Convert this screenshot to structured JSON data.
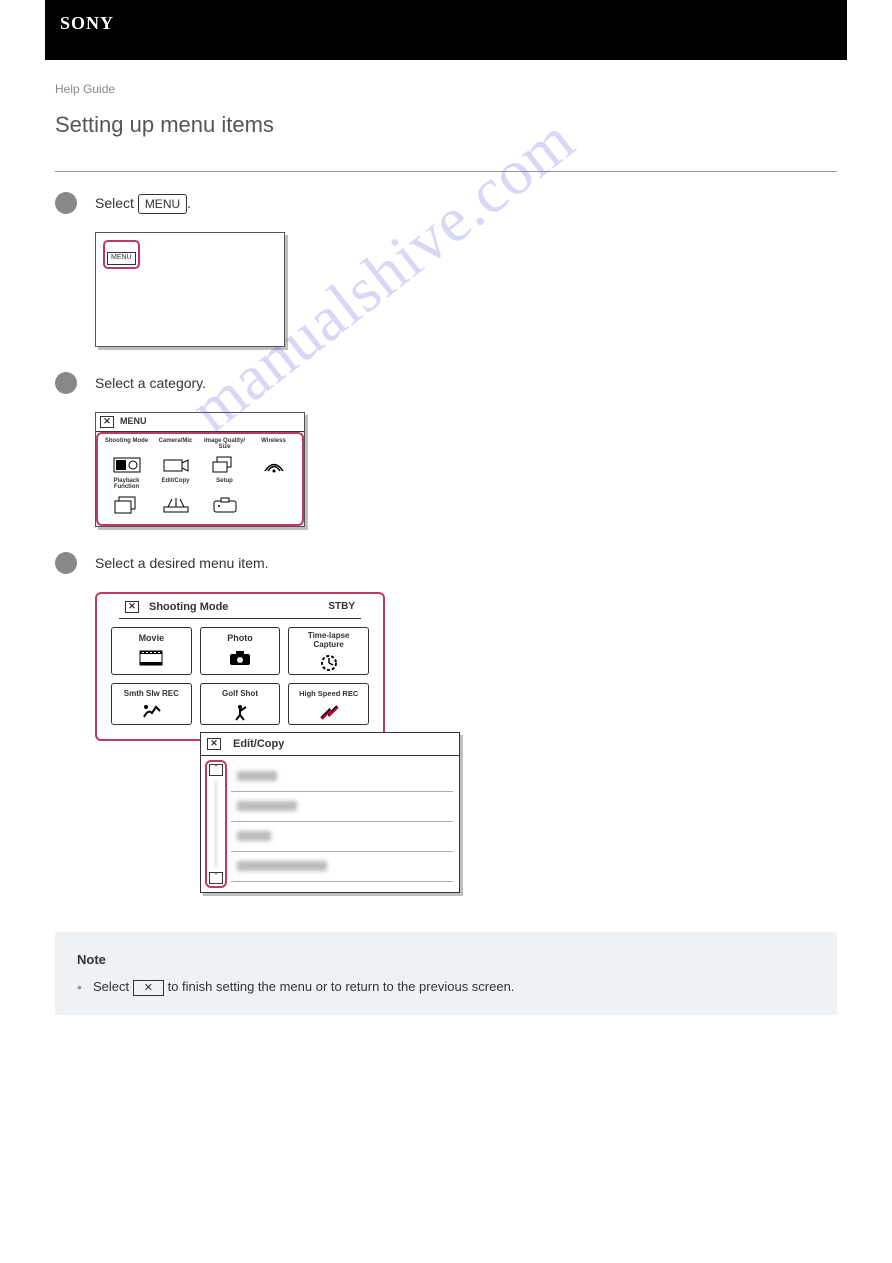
{
  "logo": "SONY",
  "breadcrumb": "Help Guide",
  "title": "Setting up menu items",
  "step1": {
    "pre": "Select ",
    "btn": "MENU",
    "post": "."
  },
  "menu_mini": "MENU",
  "step2": "Select a category.",
  "fig2_head": "MENU",
  "categories": [
    {
      "label": "Shooting Mode"
    },
    {
      "label": "Camera/Mic"
    },
    {
      "label": "Image Quality/\nSize"
    },
    {
      "label": "Wireless"
    },
    {
      "label": "Playback\nFunction"
    },
    {
      "label": "Edit/Copy"
    },
    {
      "label": "Setup"
    }
  ],
  "step3": "Select a desired menu item.",
  "sub1_head": "Shooting Mode",
  "stby": "STBY",
  "modes": [
    {
      "label": "Movie"
    },
    {
      "label": "Photo"
    },
    {
      "label": "Time-lapse\nCapture"
    },
    {
      "label": "Smth Slw REC"
    },
    {
      "label": "Golf Shot"
    },
    {
      "label": "High Speed REC"
    }
  ],
  "sub2_head": "Edit/Copy",
  "blur_widths": [
    40,
    60,
    34,
    90
  ],
  "note_title": "Note",
  "note_item": {
    "pre": "Select ",
    "post": " to finish setting the menu or to return to the previous screen."
  },
  "x": "✕",
  "watermark": "manualshive.com",
  "colors": {
    "accent": "#c0395f",
    "note_bg": "#eef2f5"
  }
}
